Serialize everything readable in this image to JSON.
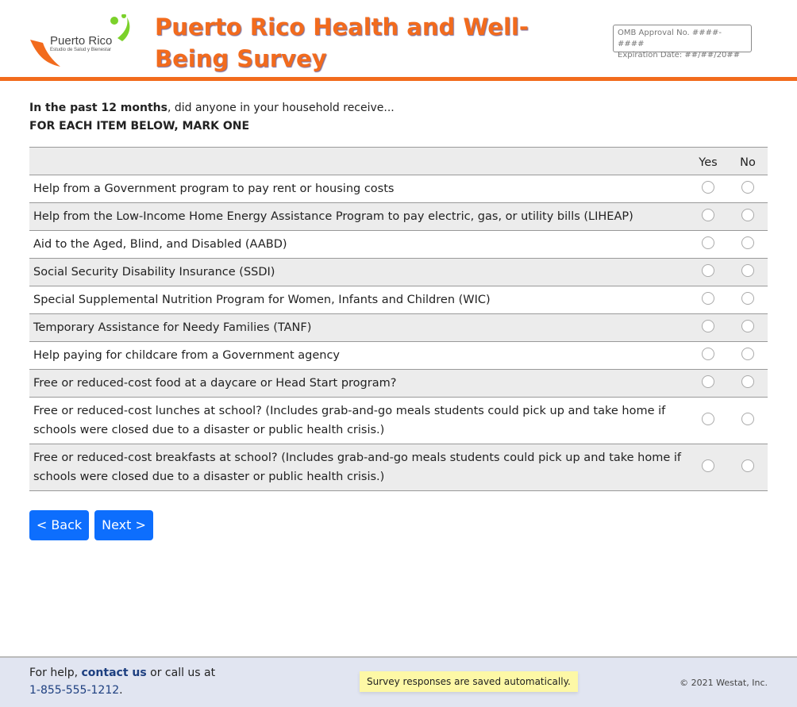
{
  "header": {
    "logo_name": "Puerto Rico",
    "logo_sub": "Estudio de Salud y Bienestar",
    "title": "Puerto Rico Health and Well-Being Survey",
    "omb_line1": "OMB Approval No. ####-####",
    "omb_line2": "Expiration Date: ##/##/20##",
    "accent": "#f26b1d"
  },
  "question": {
    "bold": "In the past 12 months",
    "rest": ", did anyone in your household receive...",
    "instruction": "FOR EACH ITEM BELOW, MARK ONE"
  },
  "columns": [
    "Yes",
    "No"
  ],
  "items": [
    "Help from a Government program to pay rent or housing costs",
    "Help from the Low-Income Home Energy Assistance Program to pay electric, gas, or utility bills (LIHEAP)",
    "Aid to the Aged, Blind, and Disabled (AABD)",
    "Social Security Disability Insurance (SSDI)",
    "Special Supplemental Nutrition Program for Women, Infants and Children (WIC)",
    "Temporary Assistance for Needy Families (TANF)",
    "Help paying for childcare from a Government agency",
    "Free or reduced-cost food at a daycare or Head Start program?",
    "Free or reduced-cost lunches at school? (Includes grab-and-go meals students could pick up and take home if schools were closed due to a disaster or public health crisis.)",
    "Free or reduced-cost breakfasts at school? (Includes grab-and-go meals students could pick up and take home if schools were closed due to a disaster or public health crisis.)"
  ],
  "nav": {
    "back": "< Back",
    "next": "Next >"
  },
  "footer": {
    "help_prefix": "For help, ",
    "contact": "contact us",
    "help_mid": " or call us at",
    "phone": "1-855-555-1212",
    "phone_suffix": ".",
    "saved": "Survey responses are saved automatically.",
    "copyright": "© 2021 Westat, Inc."
  }
}
